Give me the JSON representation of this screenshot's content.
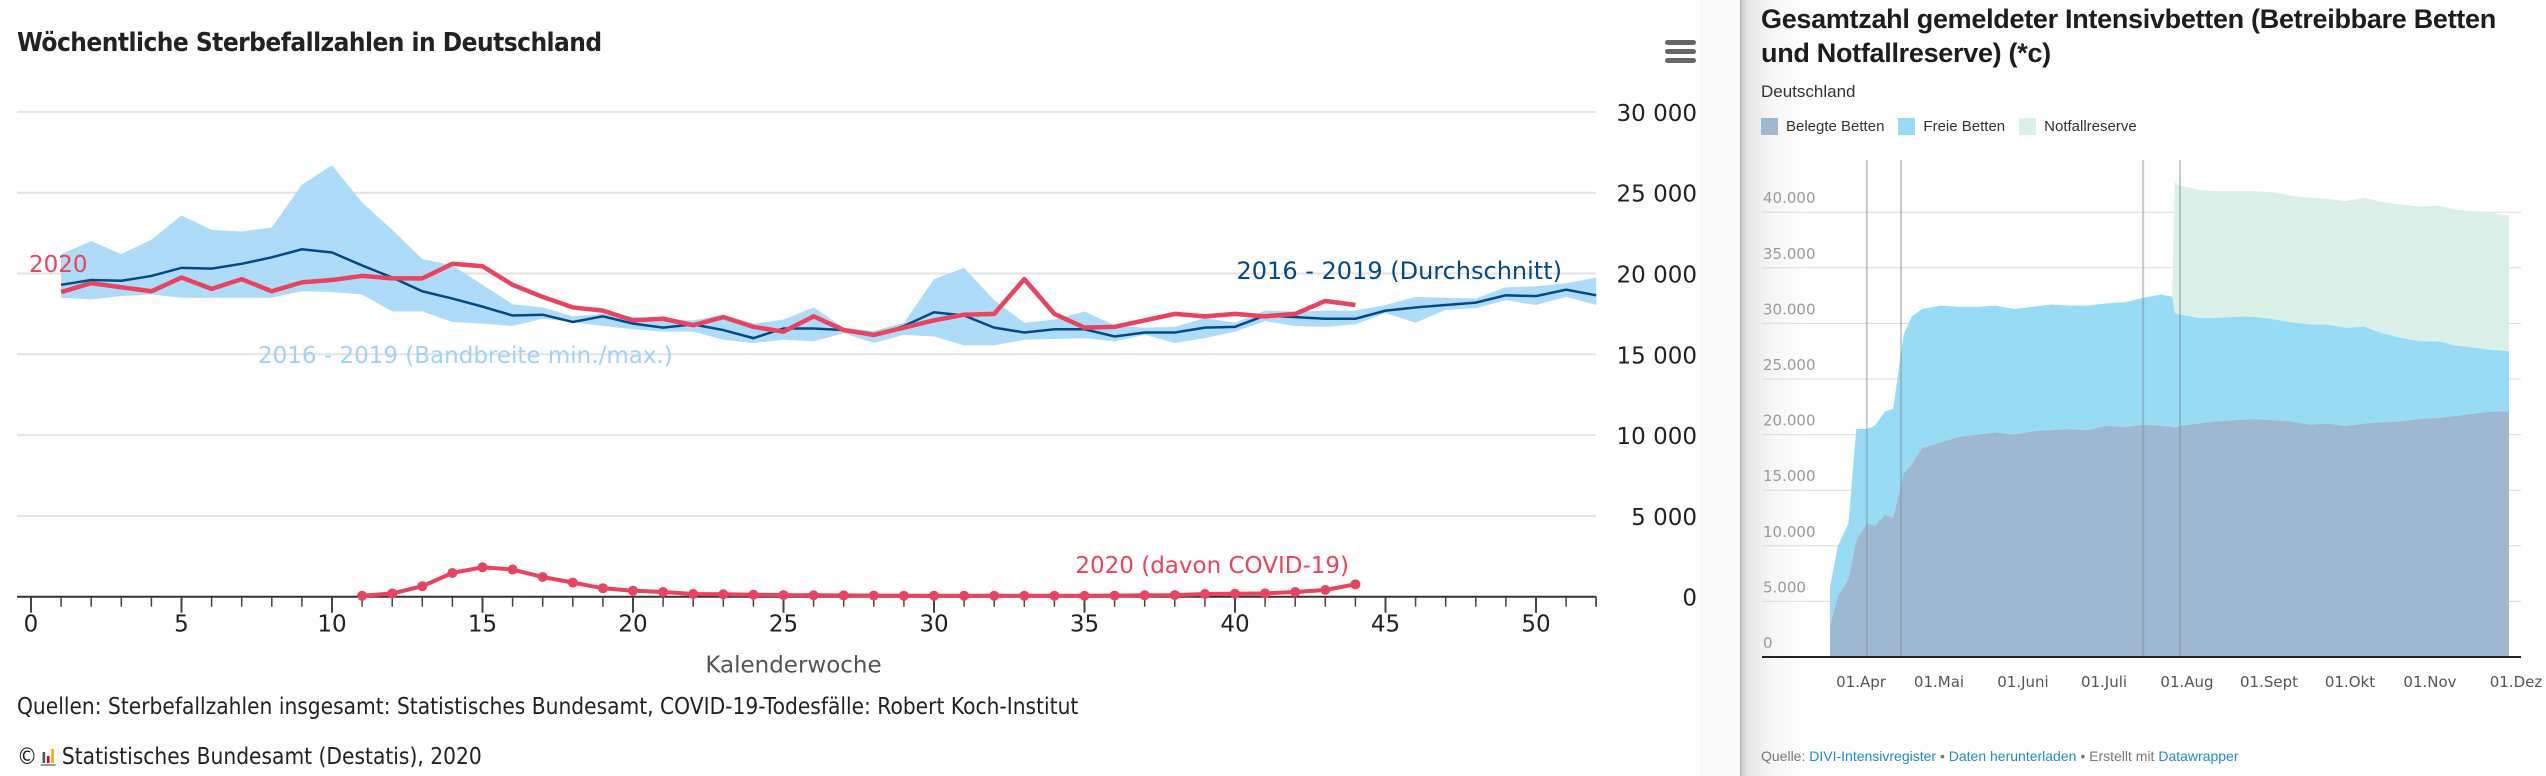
{
  "left": {
    "title": "Wöchentliche Sterbefallzahlen in Deutschland",
    "menu_icon": "hamburger-menu-icon",
    "source": "Quellen: Sterbefallzahlen insgesamt: Statistisches Bundesamt, COVID-19-Todesfälle: Robert Koch-Institut",
    "copyright_symbol": "©",
    "copyright_text": "Statistisches Bundesamt (Destatis), 2020",
    "colors": {
      "band": "#aedcf8",
      "avg": "#004b87",
      "y2020": "#e8435f",
      "band_label": "#9dd3f5"
    }
  },
  "right": {
    "title": "Gesamtzahl gemeldeter Intensivbetten (Betreibbare Betten und Notfallreserve) (*c)",
    "subtitle": "Deutschland",
    "legend": [
      {
        "label": "Belegte Betten",
        "color": "#9fb8d2"
      },
      {
        "label": "Freie Betten",
        "color": "#97dcf4"
      },
      {
        "label": "Notfallreserve",
        "color": "#dbf0e9"
      }
    ],
    "footer": {
      "prefix": "Quelle:",
      "source_link": "DIVI-Intensivregister",
      "sep1": "•",
      "download_link": "Daten herunterladen",
      "sep2": "•",
      "made_with": "Erstellt mit",
      "tool_link": "Datawrapper"
    }
  },
  "chart_data": [
    {
      "type": "line",
      "title": "Wöchentliche Sterbefallzahlen in Deutschland",
      "xlabel": "Kalenderwoche",
      "ylabel": "",
      "xlim": [
        0,
        52
      ],
      "ylim": [
        0,
        30000
      ],
      "x_ticks": [
        0,
        5,
        10,
        15,
        20,
        25,
        30,
        35,
        40,
        45,
        50
      ],
      "y_ticks": [
        0,
        5000,
        10000,
        15000,
        20000,
        25000,
        30000
      ],
      "y_tick_labels": [
        "0",
        "5 000",
        "10 000",
        "15 000",
        "20 000",
        "25 000",
        "30 000"
      ],
      "grid": true,
      "y_axis_side": "right",
      "x": [
        1,
        2,
        3,
        4,
        5,
        6,
        7,
        8,
        9,
        10,
        11,
        12,
        13,
        14,
        15,
        16,
        17,
        18,
        19,
        20,
        21,
        22,
        23,
        24,
        25,
        26,
        27,
        28,
        29,
        30,
        31,
        32,
        33,
        34,
        35,
        36,
        37,
        38,
        39,
        40,
        41,
        42,
        43,
        44,
        45,
        46,
        47,
        48,
        49,
        50,
        51,
        52
      ],
      "series": [
        {
          "name": "2016 - 2019 (Bandbreite min./max.)",
          "kind": "band",
          "max": [
            21200,
            22000,
            21200,
            22100,
            23600,
            22700,
            22600,
            22850,
            25500,
            26700,
            24400,
            22700,
            20900,
            20500,
            19300,
            18100,
            17900,
            17350,
            17500,
            17350,
            17150,
            17100,
            17450,
            16900,
            17150,
            17900,
            16650,
            16450,
            16950,
            19650,
            20350,
            18350,
            16950,
            17150,
            17650,
            16800,
            16650,
            16700,
            17250,
            16950,
            17700,
            17650,
            17700,
            17700,
            18050,
            18550,
            18500,
            18450,
            19150,
            19200,
            19400,
            19750
          ],
          "min": [
            18500,
            18400,
            18600,
            18700,
            18500,
            18500,
            18500,
            18500,
            18900,
            18850,
            18700,
            17650,
            17650,
            17000,
            16900,
            16750,
            17200,
            17000,
            16750,
            16550,
            16400,
            16400,
            15900,
            15700,
            15900,
            15800,
            16300,
            15700,
            16200,
            16100,
            15550,
            15550,
            15900,
            15950,
            16000,
            15800,
            16200,
            15700,
            16000,
            16400,
            17050,
            16750,
            16700,
            16850,
            17550,
            16950,
            17750,
            17850,
            18350,
            18050,
            18550,
            18050
          ]
        },
        {
          "name": "2016 - 2019 (Durchschnitt)",
          "values": [
            19300,
            19600,
            19550,
            19850,
            20350,
            20300,
            20600,
            21000,
            21500,
            21300,
            20500,
            19750,
            18900,
            18450,
            17950,
            17400,
            17450,
            17000,
            17350,
            16900,
            16650,
            16850,
            16500,
            16000,
            16600,
            16600,
            16500,
            16150,
            16750,
            17600,
            17400,
            16650,
            16350,
            16550,
            16550,
            16100,
            16350,
            16350,
            16650,
            16700,
            17400,
            17300,
            17200,
            17200,
            17700,
            17900,
            18050,
            18200,
            18650,
            18600,
            19000,
            18650
          ]
        },
        {
          "name": "2020",
          "values": [
            18850,
            19400,
            19150,
            18900,
            19750,
            19050,
            19650,
            18900,
            19450,
            19600,
            19850,
            19700,
            19700,
            20600,
            20450,
            19300,
            18550,
            17900,
            17700,
            17100,
            17200,
            16800,
            17300,
            16700,
            16400,
            17350,
            16500,
            16200,
            16650,
            17100,
            17450,
            17500,
            19650,
            17500,
            16650,
            16700,
            17100,
            17500,
            17350,
            17500,
            17350,
            17500,
            18300,
            18050
          ]
        },
        {
          "name": "2020 (davon COVID-19)",
          "x_start": 11,
          "values": [
            60,
            200,
            650,
            1470,
            1820,
            1680,
            1220,
            870,
            520,
            370,
            290,
            170,
            150,
            120,
            100,
            90,
            80,
            70,
            60,
            60,
            60,
            60,
            60,
            60,
            60,
            70,
            90,
            100,
            165,
            185,
            205,
            290,
            415,
            765
          ]
        }
      ]
    },
    {
      "type": "area",
      "title": "Gesamtzahl gemeldeter Intensivbetten (Betreibbare Betten und Notfallreserve) (*c)",
      "subtitle": "Deutschland",
      "stacked": true,
      "ylim": [
        0,
        45000
      ],
      "y_ticks": [
        0,
        5000,
        10000,
        15000,
        20000,
        25000,
        30000,
        35000,
        40000
      ],
      "y_tick_labels": [
        "0",
        "5.000",
        "10.000",
        "15.000",
        "20.000",
        "25.000",
        "30.000",
        "35.000",
        "40.000"
      ],
      "x_tick_labels": [
        "01.Apr",
        "01.Mai",
        "01.Juni",
        "01.Juli",
        "01.Aug",
        "01.Sept",
        "01.Okt",
        "01.Nov",
        "01.Dez"
      ],
      "x_range": [
        "2020-03-18",
        "2020-12-01"
      ],
      "grid": true,
      "legend_position": "top-left",
      "x_days": [
        0,
        3,
        7,
        10,
        14,
        17,
        21,
        24,
        28,
        31,
        35,
        42,
        49,
        56,
        63,
        70,
        77,
        84,
        91,
        98,
        105,
        112,
        119,
        126,
        130,
        131,
        133,
        140,
        147,
        154,
        161,
        168,
        175,
        182,
        189,
        196,
        203,
        210,
        217,
        224,
        231,
        238,
        245,
        252,
        258
      ],
      "series": [
        {
          "name": "Belegte Betten",
          "values": [
            2800,
            5500,
            7000,
            10500,
            12000,
            11800,
            12800,
            12500,
            16500,
            17300,
            18800,
            19300,
            19800,
            20000,
            20200,
            20000,
            20300,
            20400,
            20500,
            20400,
            20800,
            20700,
            20900,
            20800,
            20700,
            20600,
            20800,
            21000,
            21200,
            21300,
            21400,
            21300,
            21200,
            20900,
            21000,
            20800,
            21000,
            21100,
            21200,
            21400,
            21500,
            21700,
            21900,
            22100,
            22100
          ]
        },
        {
          "name": "Freie Betten",
          "values": [
            3500,
            4500,
            5000,
            10000,
            8500,
            9000,
            9300,
            9800,
            12500,
            13300,
            12500,
            12300,
            11700,
            11500,
            11400,
            11300,
            11200,
            11300,
            11100,
            11200,
            11000,
            11200,
            11400,
            11800,
            11700,
            10300,
            10000,
            9500,
            9300,
            9300,
            9200,
            9100,
            8900,
            9000,
            8900,
            8800,
            8700,
            8000,
            7500,
            7000,
            6900,
            6300,
            5900,
            5500,
            5400
          ]
        },
        {
          "name": "Notfallreserve",
          "values": [
            0,
            0,
            0,
            0,
            0,
            0,
            0,
            0,
            0,
            0,
            0,
            0,
            0,
            0,
            0,
            0,
            0,
            0,
            0,
            0,
            0,
            0,
            0,
            0,
            0,
            11800,
            11600,
            11500,
            11400,
            11300,
            11300,
            11400,
            11400,
            11400,
            11300,
            11400,
            11600,
            11800,
            12000,
            12100,
            12200,
            12200,
            12300,
            12300,
            12200
          ]
        }
      ],
      "reference_lines_days": [
        14,
        27,
        119,
        133
      ]
    }
  ]
}
